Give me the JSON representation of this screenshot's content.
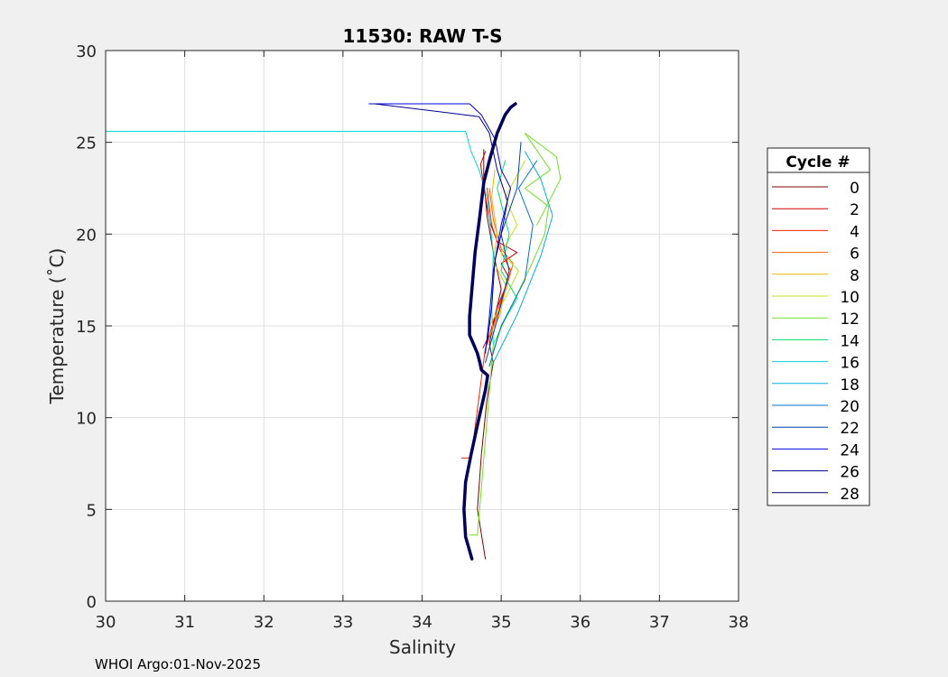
{
  "chart_data": {
    "type": "line",
    "title": "11530: RAW T-S",
    "xlabel": "Salinity",
    "ylabel": "Temperature (˚C)",
    "xlim": [
      30,
      38
    ],
    "ylim": [
      0,
      30
    ],
    "xticks": [
      "30",
      "31",
      "32",
      "33",
      "34",
      "35",
      "36",
      "37",
      "38"
    ],
    "yticks": [
      "0",
      "5",
      "10",
      "15",
      "20",
      "25",
      "30"
    ],
    "grid": true,
    "legend": {
      "title": "Cycle #",
      "placement": "right",
      "entries": [
        "0",
        "2",
        "4",
        "6",
        "8",
        "10",
        "12",
        "14",
        "16",
        "18",
        "20",
        "22",
        "24",
        "26",
        "28"
      ]
    },
    "series": [
      {
        "name": "0",
        "color": "#800000",
        "values": [
          [
            34.8,
            2.3
          ],
          [
            34.7,
            5
          ],
          [
            34.75,
            8
          ],
          [
            34.82,
            11
          ],
          [
            34.9,
            13
          ],
          [
            34.85,
            14
          ],
          [
            34.92,
            15.5
          ],
          [
            35.0,
            17
          ],
          [
            34.9,
            19
          ],
          [
            34.82,
            21
          ],
          [
            34.78,
            23
          ],
          [
            34.78,
            24.6
          ]
        ]
      },
      {
        "name": "2",
        "color": "#d00000",
        "values": [
          [
            34.77,
            13.8
          ],
          [
            34.86,
            14.6
          ],
          [
            34.95,
            16
          ],
          [
            35.1,
            17.6
          ],
          [
            35.0,
            18.4
          ],
          [
            35.2,
            19
          ],
          [
            34.95,
            19.6
          ],
          [
            34.86,
            20.6
          ],
          [
            34.8,
            22
          ],
          [
            34.74,
            23.8
          ],
          [
            34.8,
            24.5
          ]
        ]
      },
      {
        "name": "4",
        "color": "#ff2000",
        "values": [
          [
            34.5,
            7.8
          ],
          [
            34.62,
            7.8
          ],
          [
            34.8,
            13.8
          ],
          [
            34.9,
            15
          ],
          [
            35.0,
            16.4
          ],
          [
            35.12,
            18
          ],
          [
            34.98,
            19.2
          ],
          [
            34.88,
            20.5
          ],
          [
            34.82,
            22.5
          ]
        ]
      },
      {
        "name": "6",
        "color": "#ff6000",
        "values": [
          [
            34.82,
            14
          ],
          [
            34.92,
            15.2
          ],
          [
            35.06,
            17
          ],
          [
            35.15,
            18.4
          ],
          [
            35.0,
            19.2
          ],
          [
            34.9,
            20.8
          ],
          [
            34.85,
            22.5
          ]
        ]
      },
      {
        "name": "8",
        "color": "#e8b800",
        "values": [
          [
            34.85,
            14.5
          ],
          [
            34.98,
            15.5
          ],
          [
            35.06,
            17.2
          ],
          [
            34.9,
            18.5
          ],
          [
            34.95,
            20
          ],
          [
            34.88,
            22
          ],
          [
            34.92,
            23.5
          ]
        ]
      },
      {
        "name": "10",
        "color": "#c0e020",
        "values": [
          [
            34.85,
            15
          ],
          [
            35.05,
            16.5
          ],
          [
            35.22,
            18
          ],
          [
            35.0,
            19
          ],
          [
            35.2,
            20.5
          ],
          [
            35.05,
            22
          ],
          [
            35.3,
            24
          ]
        ]
      },
      {
        "name": "12",
        "color": "#70e020",
        "values": [
          [
            34.6,
            3.6
          ],
          [
            34.7,
            3.6
          ],
          [
            34.9,
            14
          ],
          [
            35.1,
            15.8
          ],
          [
            35.4,
            18.5
          ],
          [
            35.55,
            20
          ],
          [
            35.6,
            21.5
          ],
          [
            35.3,
            22.5
          ],
          [
            35.62,
            23.5
          ],
          [
            35.3,
            25.5
          ],
          [
            35.7,
            24.2
          ],
          [
            35.75,
            23
          ],
          [
            35.45,
            20.5
          ]
        ]
      },
      {
        "name": "14",
        "color": "#00e070",
        "values": [
          [
            34.9,
            13.6
          ],
          [
            35.0,
            15
          ],
          [
            35.2,
            16.5
          ],
          [
            35.0,
            18
          ],
          [
            35.1,
            20
          ],
          [
            34.95,
            22.5
          ],
          [
            35.05,
            24
          ]
        ]
      },
      {
        "name": "16",
        "color": "#00d8d8",
        "values": [
          [
            30.0,
            25.6
          ],
          [
            34.55,
            25.6
          ],
          [
            34.62,
            24.5
          ],
          [
            34.72,
            23.5
          ],
          [
            34.82,
            22
          ],
          [
            34.9,
            19
          ],
          [
            34.88,
            16
          ],
          [
            34.9,
            14
          ]
        ]
      },
      {
        "name": "18",
        "color": "#00b0e0",
        "values": [
          [
            34.9,
            13
          ],
          [
            35.2,
            15.6
          ],
          [
            35.5,
            18.8
          ],
          [
            35.65,
            21
          ],
          [
            35.5,
            23
          ],
          [
            35.3,
            24.5
          ]
        ]
      },
      {
        "name": "20",
        "color": "#0070d0",
        "values": [
          [
            34.85,
            12.8
          ],
          [
            35.0,
            15
          ],
          [
            35.3,
            17.5
          ],
          [
            35.4,
            20.5
          ],
          [
            35.22,
            22.5
          ],
          [
            35.45,
            24
          ]
        ]
      },
      {
        "name": "22",
        "color": "#0040b0",
        "values": [
          [
            34.8,
            13
          ],
          [
            34.96,
            15.5
          ],
          [
            35.1,
            18
          ],
          [
            35.0,
            20
          ],
          [
            35.2,
            22.5
          ],
          [
            35.25,
            25
          ]
        ]
      },
      {
        "name": "24",
        "color": "#0000e0",
        "values": [
          [
            33.33,
            27.1
          ],
          [
            34.6,
            27.1
          ],
          [
            34.75,
            26.5
          ],
          [
            34.92,
            25.2
          ],
          [
            35.0,
            23.5
          ],
          [
            35.12,
            22.5
          ],
          [
            35.0,
            20.5
          ],
          [
            34.9,
            18
          ],
          [
            34.85,
            15.5
          ],
          [
            34.8,
            13.5
          ]
        ]
      },
      {
        "name": "26",
        "color": "#000090",
        "values": [
          [
            33.4,
            27.1
          ],
          [
            34.72,
            26.4
          ],
          [
            34.85,
            25.5
          ],
          [
            34.95,
            23.5
          ],
          [
            35.08,
            21.8
          ],
          [
            35.0,
            20
          ],
          [
            34.92,
            18.5
          ],
          [
            34.88,
            16
          ],
          [
            34.82,
            14
          ]
        ]
      },
      {
        "name": "28",
        "color": "#00005c",
        "values": [
          [
            34.63,
            2.3
          ],
          [
            34.55,
            3.5
          ],
          [
            34.53,
            5
          ],
          [
            34.55,
            6.5
          ],
          [
            34.62,
            8
          ],
          [
            34.72,
            10
          ],
          [
            34.8,
            11.5
          ],
          [
            34.83,
            12.3
          ],
          [
            34.75,
            12.6
          ],
          [
            34.73,
            13
          ],
          [
            34.7,
            13.5
          ],
          [
            34.65,
            14
          ],
          [
            34.6,
            14.5
          ],
          [
            34.6,
            15.5
          ],
          [
            34.63,
            17
          ],
          [
            34.67,
            19
          ],
          [
            34.73,
            21
          ],
          [
            34.78,
            22.8
          ],
          [
            34.85,
            24
          ],
          [
            34.95,
            25.5
          ],
          [
            35.05,
            26.5
          ],
          [
            35.12,
            26.9
          ],
          [
            35.18,
            27.1
          ]
        ]
      }
    ]
  },
  "footer": "WHOI Argo:01-Nov-2025"
}
